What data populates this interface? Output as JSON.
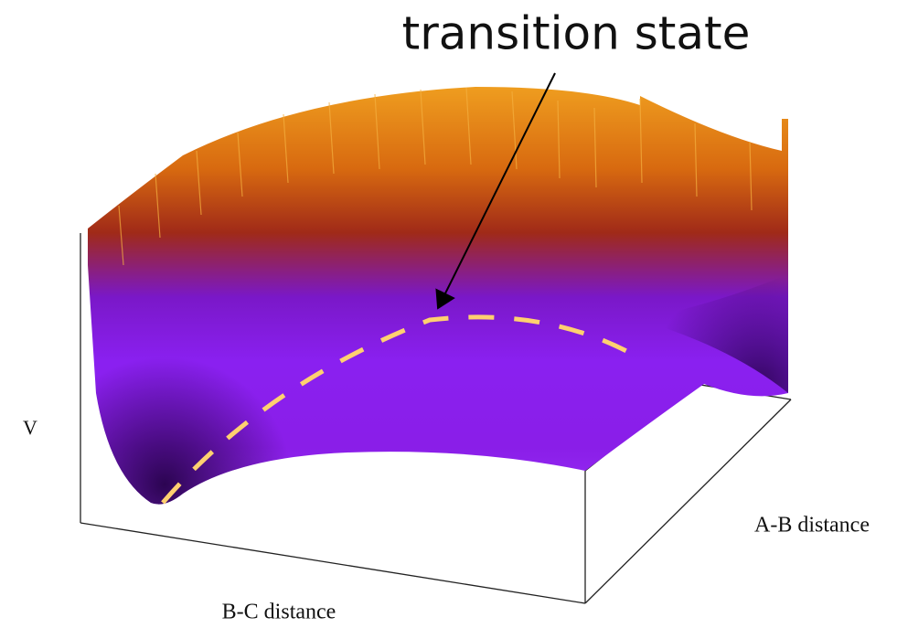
{
  "annotation": "transition state",
  "axes": {
    "z": "V",
    "y": "A-B distance",
    "x": "B-C distance"
  }
}
